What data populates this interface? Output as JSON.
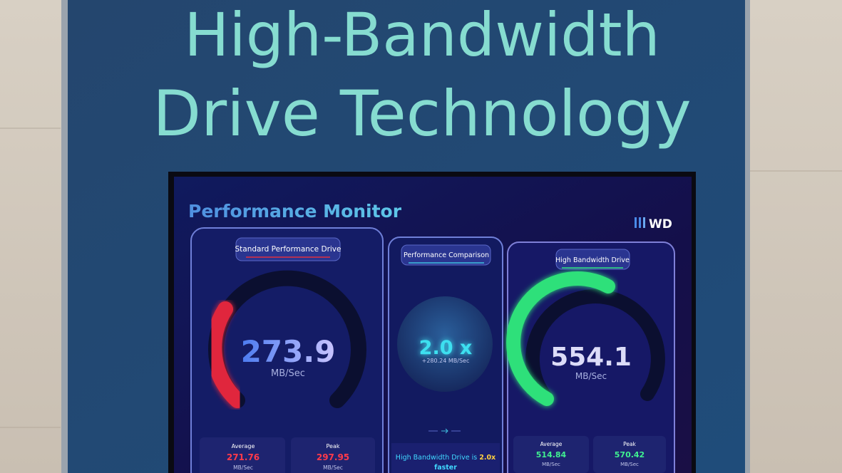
{
  "banner": {
    "line1": "High-Bandwidth",
    "line2": "Drive Technology"
  },
  "screen": {
    "title": "Performance Monitor",
    "logo": "WD",
    "standard": {
      "label": "Standard Performance Drive",
      "value": "273.9",
      "unit": "MB/Sec",
      "average_label": "Average",
      "average": "271.76",
      "average_unit": "MB/Sec",
      "peak_label": "Peak",
      "peak": "297.95",
      "peak_unit": "MB/Sec"
    },
    "comparison": {
      "label": "Performance Comparison",
      "ratio": "2.0 x",
      "delta": "+280.24 MB/Sec",
      "note_prefix": "High Bandwidth Drive is",
      "note_emphasis_1": "2.0x",
      "note_emphasis_2": "faster"
    },
    "high": {
      "label": "High Bandwidth Drive",
      "value": "554.1",
      "unit": "MB/Sec",
      "average_label": "Average",
      "average": "514.84",
      "average_unit": "MB/Sec",
      "peak_label": "Peak",
      "peak": "570.42",
      "peak_unit": "MB/Sec"
    }
  }
}
